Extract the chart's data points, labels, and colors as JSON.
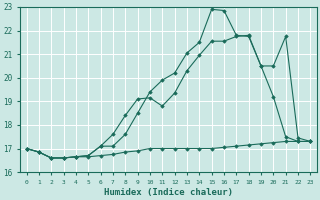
{
  "xlabel": "Humidex (Indice chaleur)",
  "bg_color": "#cce8e4",
  "grid_color": "#ffffff",
  "line_color": "#1a6b5a",
  "xlim": [
    -0.5,
    23.5
  ],
  "ylim": [
    16,
    23
  ],
  "yticks": [
    16,
    17,
    18,
    19,
    20,
    21,
    22,
    23
  ],
  "xticks": [
    0,
    1,
    2,
    3,
    4,
    5,
    6,
    7,
    8,
    9,
    10,
    11,
    12,
    13,
    14,
    15,
    16,
    17,
    18,
    19,
    20,
    21,
    22,
    23
  ],
  "line1_x": [
    0,
    1,
    2,
    3,
    4,
    5,
    6,
    7,
    8,
    9,
    10,
    11,
    12,
    13,
    14,
    15,
    16,
    17,
    18,
    19,
    20,
    21,
    22,
    23
  ],
  "line1_y": [
    17.0,
    16.85,
    16.6,
    16.6,
    16.65,
    16.65,
    16.7,
    16.75,
    16.85,
    16.9,
    17.0,
    17.0,
    17.0,
    17.0,
    17.0,
    17.0,
    17.05,
    17.1,
    17.15,
    17.2,
    17.25,
    17.3,
    17.3,
    17.3
  ],
  "line2_x": [
    0,
    1,
    2,
    3,
    4,
    5,
    6,
    7,
    8,
    9,
    10,
    11,
    12,
    13,
    14,
    15,
    16,
    17,
    18,
    19,
    20,
    21,
    22,
    23
  ],
  "line2_y": [
    17.0,
    16.85,
    16.6,
    16.6,
    16.65,
    16.7,
    17.1,
    17.6,
    18.4,
    19.1,
    19.15,
    18.8,
    19.35,
    20.3,
    20.95,
    21.55,
    21.55,
    21.75,
    21.8,
    20.5,
    19.2,
    17.5,
    17.3,
    17.3
  ],
  "line3_x": [
    0,
    1,
    2,
    3,
    4,
    5,
    6,
    7,
    8,
    9,
    10,
    11,
    12,
    13,
    14,
    15,
    16,
    17,
    18,
    19,
    20,
    21,
    22,
    23
  ],
  "line3_y": [
    17.0,
    16.85,
    16.6,
    16.6,
    16.65,
    16.7,
    17.1,
    17.1,
    17.6,
    18.5,
    19.4,
    19.9,
    20.2,
    21.05,
    21.5,
    22.9,
    22.85,
    21.8,
    21.75,
    20.5,
    20.5,
    21.75,
    17.45,
    17.3
  ]
}
